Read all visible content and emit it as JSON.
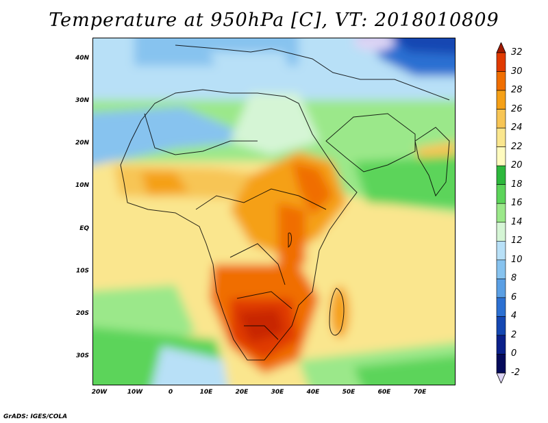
{
  "title": "Temperature at 950hPa [C], VT: 2018010809",
  "credit": "GrADS: IGES/COLA",
  "lat_labels": [
    "40N",
    "30N",
    "20N",
    "10N",
    "EQ",
    "10S",
    "20S",
    "30S"
  ],
  "lon_labels": [
    "20W",
    "10W",
    "0",
    "10E",
    "20E",
    "30E",
    "40E",
    "50E",
    "60E",
    "70E"
  ],
  "colorbar": {
    "labels": [
      "32",
      "30",
      "28",
      "26",
      "24",
      "22",
      "20",
      "18",
      "16",
      "14",
      "12",
      "10",
      "8",
      "6",
      "4",
      "2",
      "0",
      "-2"
    ],
    "colors": [
      "#a01a00",
      "#e03a00",
      "#f06e00",
      "#f5a017",
      "#f7c555",
      "#fae68e",
      "#fffbbf",
      "#2db83c",
      "#5cd45a",
      "#9be88a",
      "#d5f5d5",
      "#b8e0f7",
      "#87c3ef",
      "#5a9fe4",
      "#2c70d2",
      "#1447b2",
      "#0a208a",
      "#040a5a"
    ],
    "top_arrow_color": "#a01a00",
    "bottom_arrow_color": "#dcd4f4"
  }
}
